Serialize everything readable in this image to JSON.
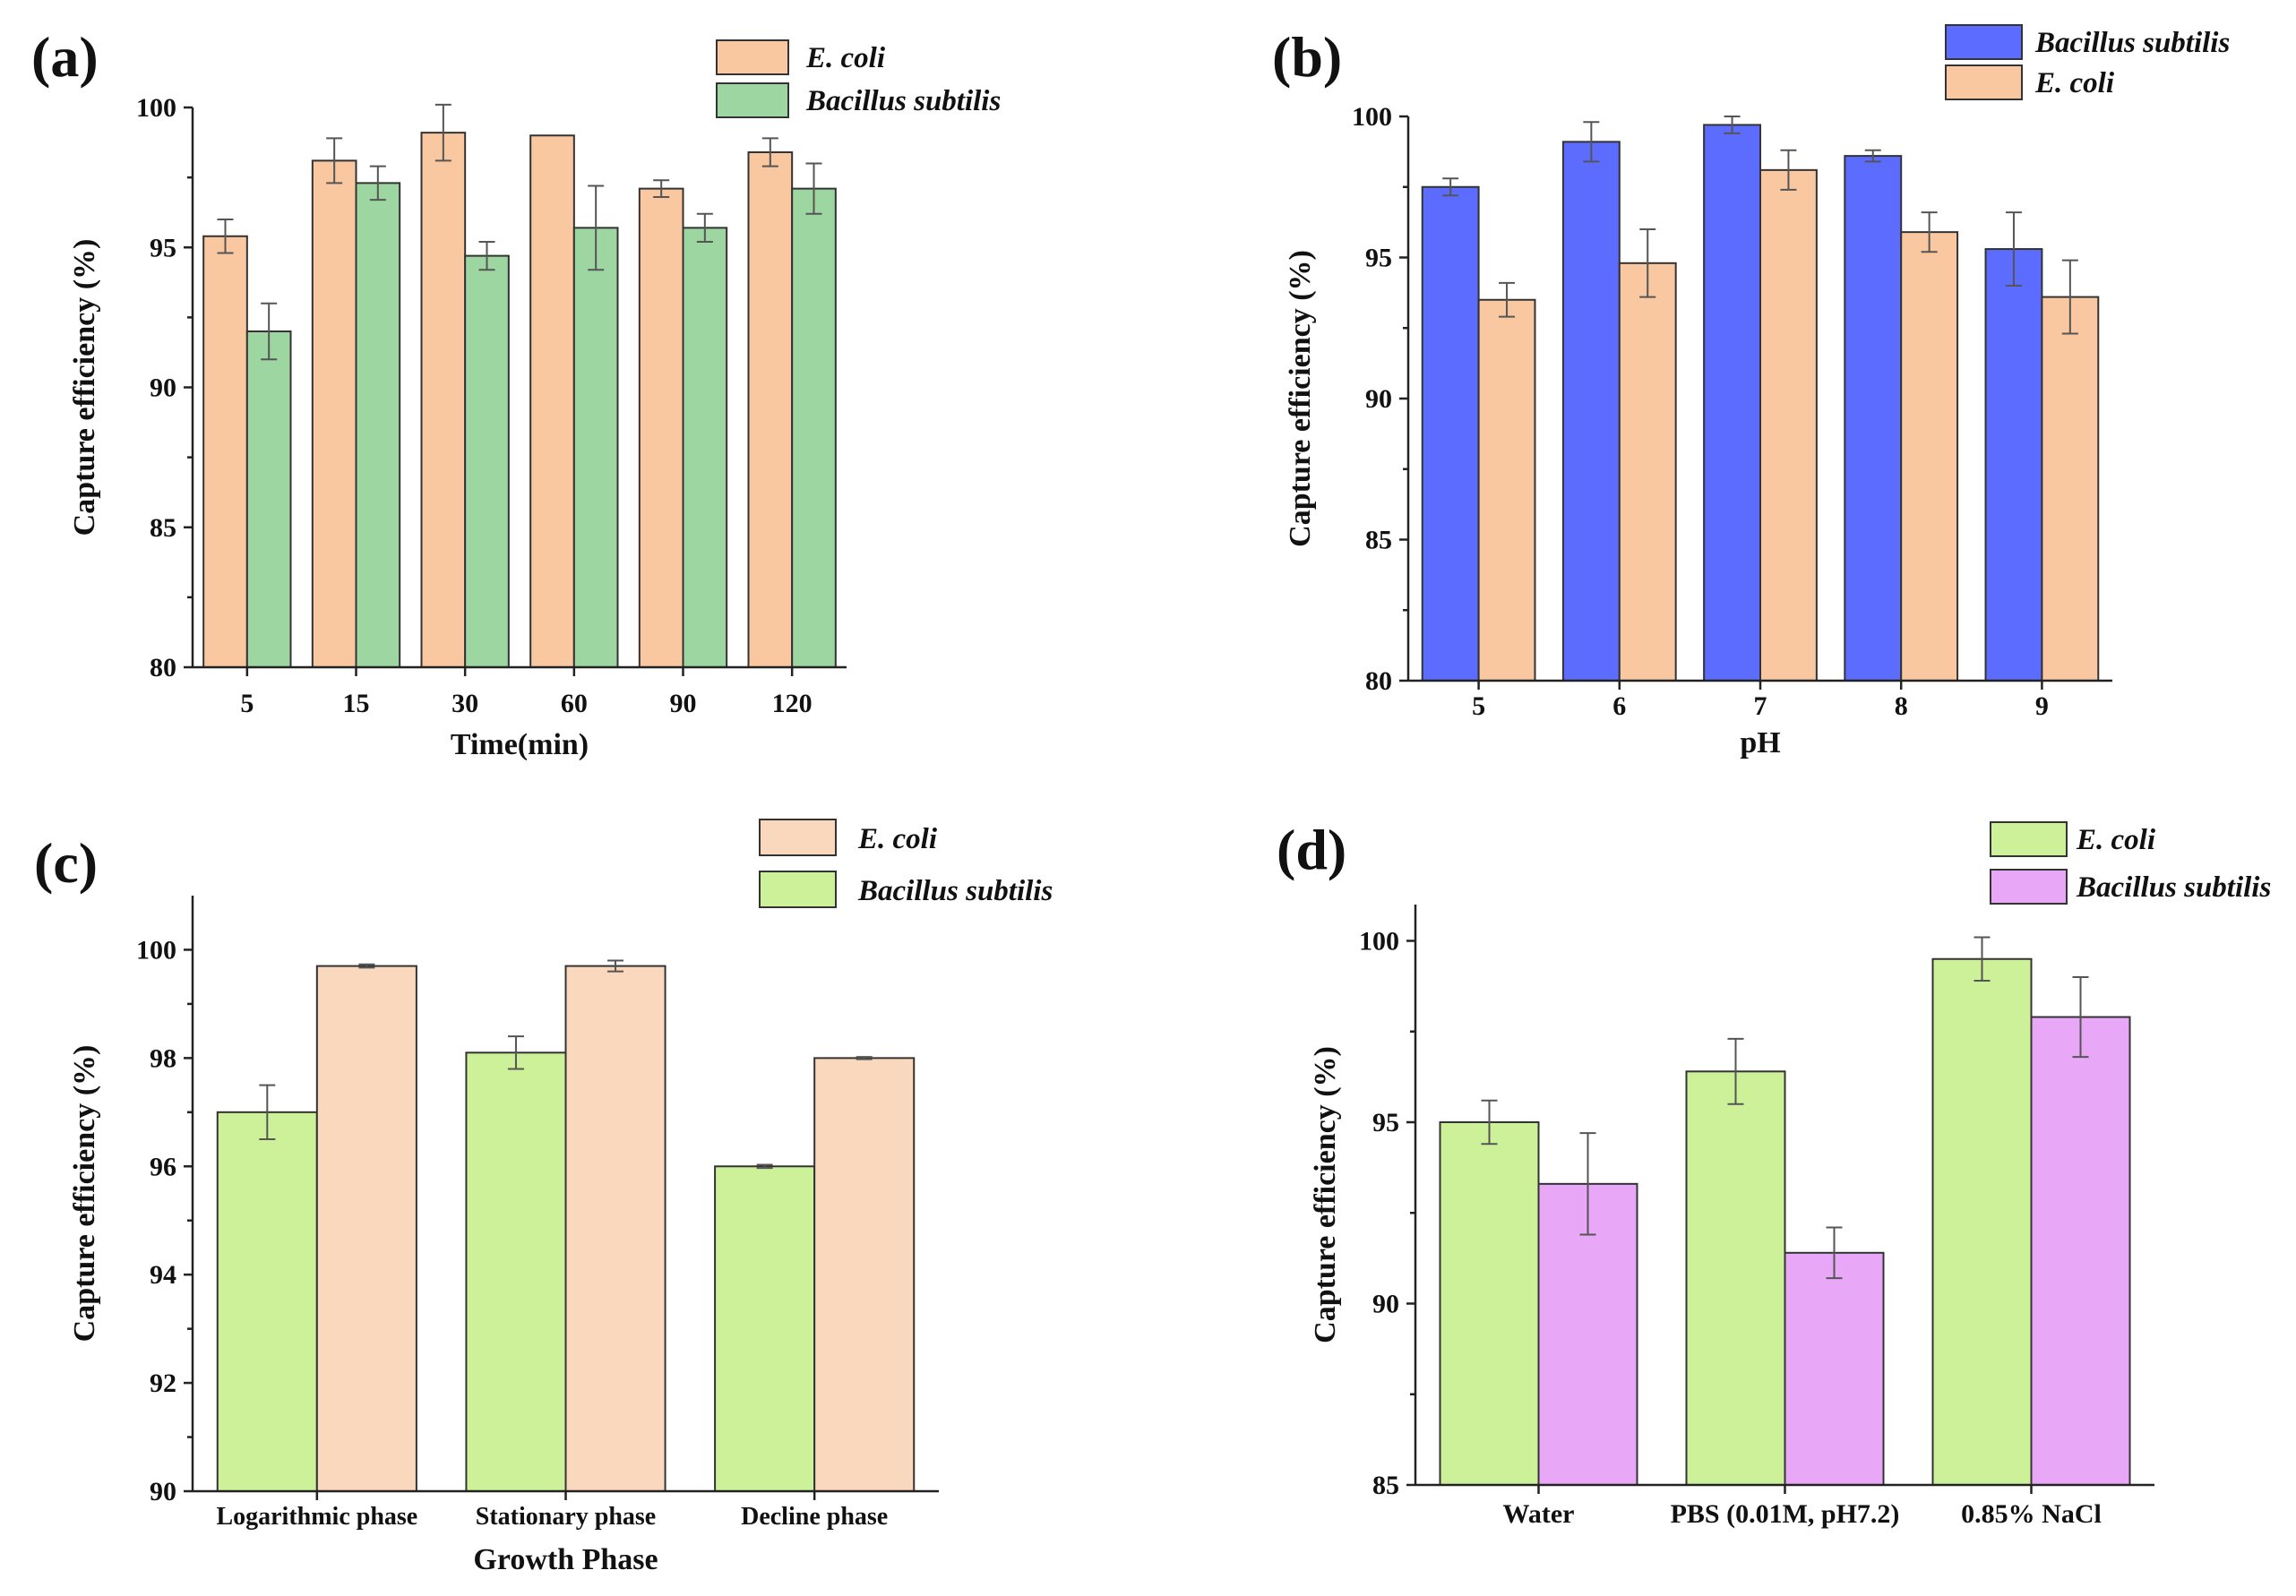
{
  "chart_data": [
    {
      "id": "a",
      "panel_label": "(a)",
      "type": "bar",
      "xlabel": "Time(min)",
      "ylabel": "Capture efficiency (%)",
      "ylim": [
        80,
        100
      ],
      "yticks": [
        80,
        85,
        90,
        95,
        100
      ],
      "categories": [
        "5",
        "15",
        "30",
        "60",
        "90",
        "120"
      ],
      "series": [
        {
          "name": "E. coli",
          "color": "#f9c8a0",
          "values": [
            95.4,
            98.1,
            99.1,
            99.0,
            97.1,
            98.4
          ],
          "errors": [
            0.6,
            0.8,
            1.0,
            0.0,
            0.3,
            0.5
          ]
        },
        {
          "name": "Bacillus subtilis",
          "color": "#9dd6a0",
          "values": [
            92.0,
            97.3,
            94.7,
            95.7,
            95.7,
            97.1
          ],
          "errors": [
            1.0,
            0.6,
            0.5,
            1.5,
            0.5,
            0.9
          ]
        }
      ],
      "legend_position": "top-right"
    },
    {
      "id": "b",
      "panel_label": "(b)",
      "type": "bar",
      "xlabel": "pH",
      "ylabel": "Capture efficiency (%)",
      "ylim": [
        80,
        100
      ],
      "yticks": [
        80,
        85,
        90,
        95,
        100
      ],
      "categories": [
        "5",
        "6",
        "7",
        "8",
        "9"
      ],
      "series": [
        {
          "name": "Bacillus subtilis",
          "color": "#5b6cff",
          "values": [
            97.5,
            99.1,
            99.7,
            98.6,
            95.3
          ],
          "errors": [
            0.3,
            0.7,
            0.3,
            0.2,
            1.3
          ]
        },
        {
          "name": "E. coli",
          "color": "#f9c8a0",
          "values": [
            93.5,
            94.8,
            98.1,
            95.9,
            93.6
          ],
          "errors": [
            0.6,
            1.2,
            0.7,
            0.7,
            1.3
          ]
        }
      ],
      "legend_position": "top-right"
    },
    {
      "id": "c",
      "panel_label": "(c)",
      "type": "bar",
      "xlabel": "Growth Phase",
      "ylabel": "Capture efficiency (%)",
      "ylim": [
        90,
        101
      ],
      "yticks": [
        90,
        92,
        94,
        96,
        98,
        100
      ],
      "categories": [
        "Logarithmic phase",
        "Stationary phase",
        "Decline phase"
      ],
      "series": [
        {
          "name": "Bacillus subtilis",
          "color": "#cdf198",
          "values": [
            97.0,
            98.1,
            96.0
          ],
          "errors": [
            0.5,
            0.3,
            0.03
          ]
        },
        {
          "name": "E. coli",
          "color": "#fad8bd",
          "values": [
            99.7,
            99.7,
            98.0
          ],
          "errors": [
            0.03,
            0.1,
            0.02
          ]
        }
      ],
      "legend_order": [
        "E. coli",
        "Bacillus subtilis"
      ],
      "legend_position": "top-right"
    },
    {
      "id": "d",
      "panel_label": "(d)",
      "type": "bar",
      "xlabel": "",
      "ylabel": "Capture efficiency (%)",
      "ylim": [
        85,
        101
      ],
      "yticks": [
        85,
        90,
        95,
        100
      ],
      "categories": [
        "Water",
        "PBS (0.01M, pH7.2)",
        "0.85% NaCl"
      ],
      "series": [
        {
          "name": "E. coli",
          "color": "#cdf198",
          "values": [
            95.0,
            96.4,
            99.5
          ],
          "errors": [
            0.6,
            0.9,
            0.6
          ]
        },
        {
          "name": "Bacillus subtilis",
          "color": "#e9a8f7",
          "values": [
            93.3,
            91.4,
            97.9
          ],
          "errors": [
            1.4,
            0.7,
            1.1
          ]
        }
      ],
      "legend_position": "top-right"
    }
  ]
}
